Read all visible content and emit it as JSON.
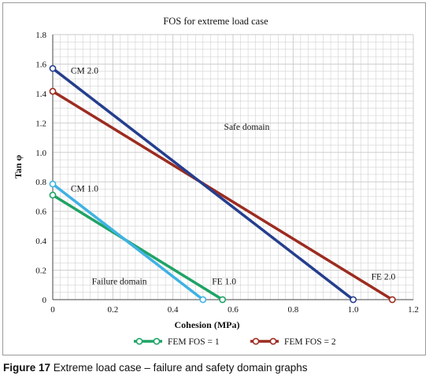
{
  "figure_caption": {
    "number": "Figure 17",
    "text": "Extreme load case – failure and safety domain graphs"
  },
  "colors": {
    "fem_fos1": "#1FA366",
    "fem_fos2": "#9C2C20",
    "cm1": "#3FB2E3",
    "cm2": "#253E8E",
    "grid": "#c8c8c8",
    "axis": "#444444"
  },
  "chart_data": {
    "type": "line",
    "title": "FOS for extreme load case",
    "xlabel": "Cohesion (MPa)",
    "ylabel": "Tan φ",
    "xlim": [
      0,
      1.2
    ],
    "ylim": [
      0,
      1.8
    ],
    "x_ticks": [
      "0",
      "0.2",
      "0.4",
      "0.6",
      "0.8",
      "1.0",
      "1.2"
    ],
    "y_ticks": [
      "0",
      "0.2",
      "0.4",
      "0.6",
      "0.8",
      "1.0",
      "1.2",
      "1.4",
      "1.6",
      "1.8"
    ],
    "grid": true,
    "legend": {
      "placement": "bottom-center",
      "entries": [
        "FEM FOS = 1",
        "FEM FOS = 2"
      ]
    },
    "series": [
      {
        "name": "FEM FOS = 1",
        "color": "#1FA366",
        "x": [
          0,
          0.565
        ],
        "y": [
          0.71,
          0
        ]
      },
      {
        "name": "FEM FOS = 2",
        "color": "#9C2C20",
        "x": [
          0,
          1.13
        ],
        "y": [
          1.415,
          0
        ]
      },
      {
        "color": "#3FB2E3",
        "x": [
          0,
          0.5
        ],
        "y": [
          0.785,
          0
        ]
      },
      {
        "color": "#253E8E",
        "x": [
          0,
          1.0
        ],
        "y": [
          1.57,
          0
        ]
      }
    ],
    "annotations": [
      {
        "text": "CM 2.0",
        "x": 0.06,
        "y": 1.535
      },
      {
        "text": "CM 1.0",
        "x": 0.06,
        "y": 0.735
      },
      {
        "text": "Safe domain",
        "x": 0.57,
        "y": 1.155
      },
      {
        "text": "Failure domain",
        "x": 0.13,
        "y": 0.105
      },
      {
        "text": "FE 1.0",
        "x": 0.53,
        "y": 0.105
      },
      {
        "text": "FE 2.0",
        "x": 1.06,
        "y": 0.135
      }
    ]
  }
}
